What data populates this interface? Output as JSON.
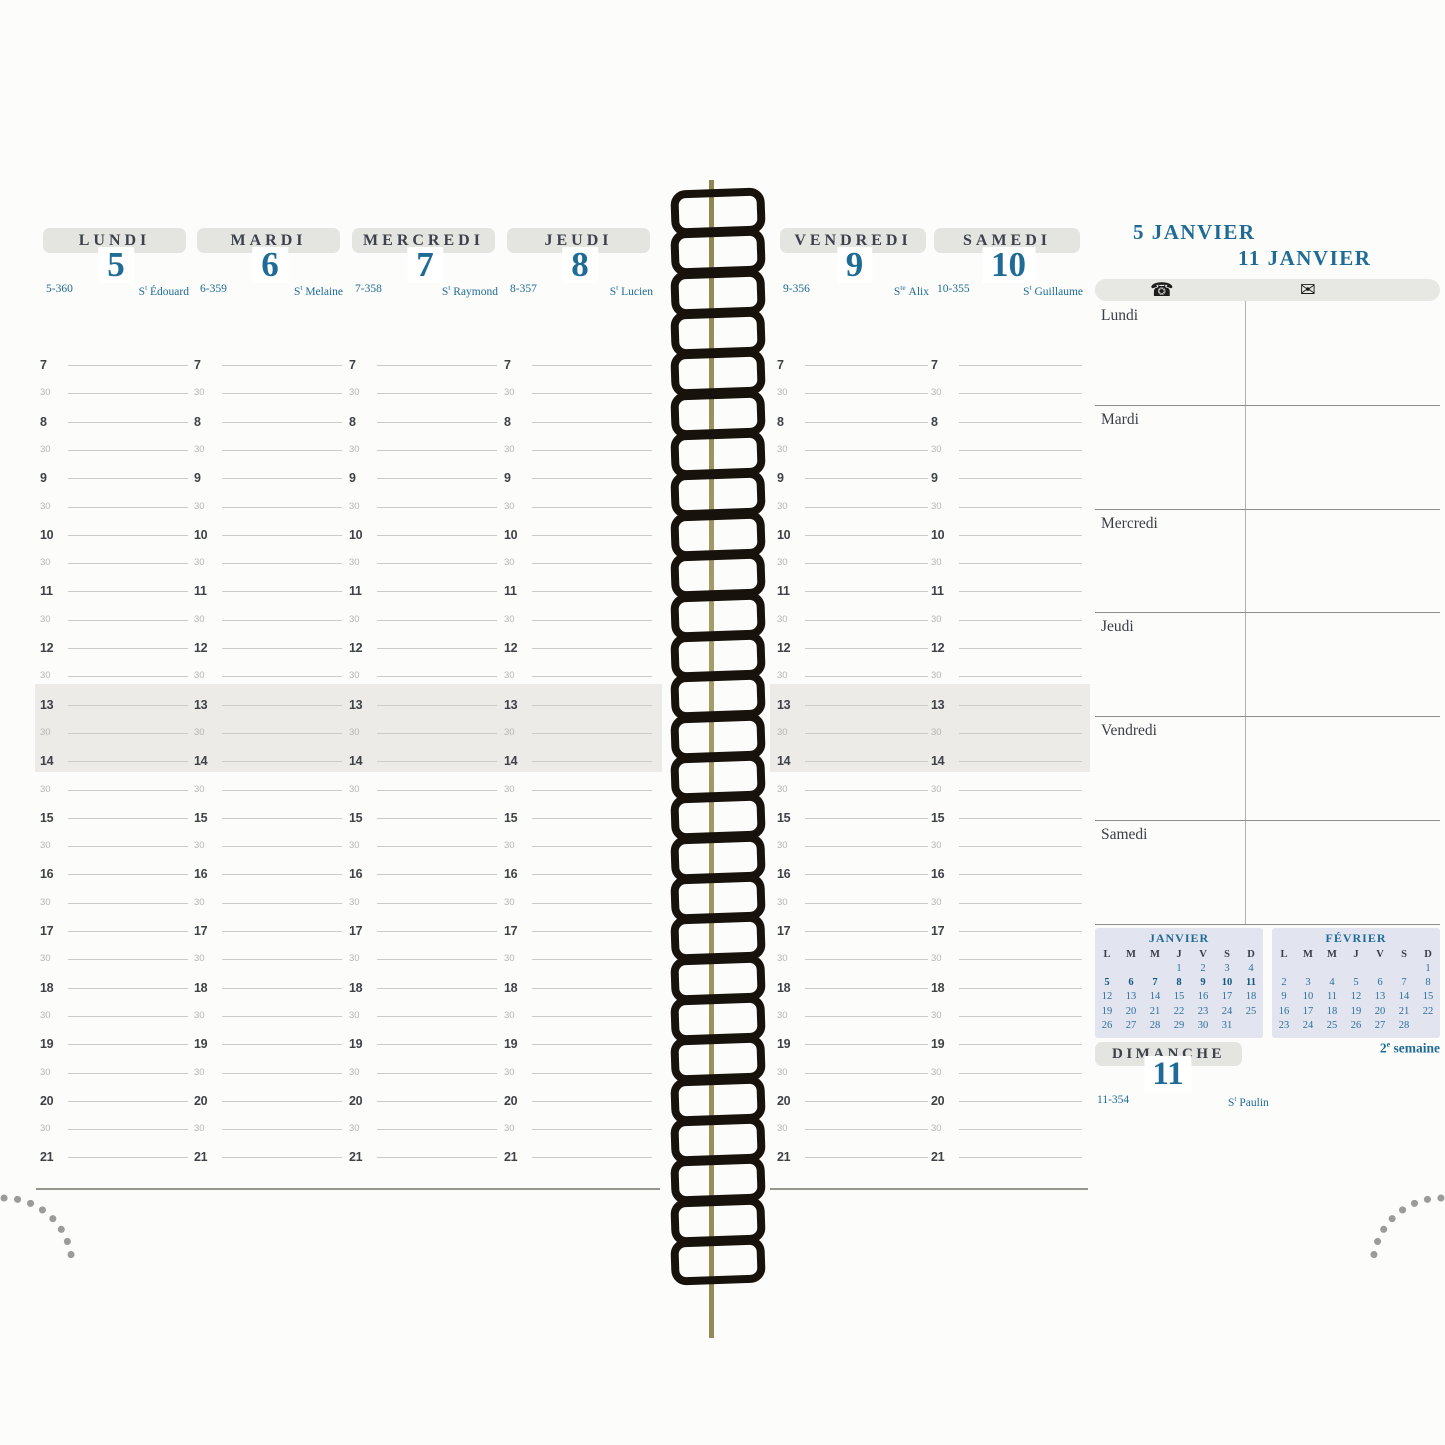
{
  "header": {
    "week_start": "5 JANVIER",
    "week_end": "11 JANVIER",
    "week_number": {
      "value": "2",
      "sup": "e",
      "word": "semaine"
    }
  },
  "icons": {
    "phone_glyph": "☎",
    "envelope_glyph": "✉"
  },
  "days": [
    {
      "name": "LUNDI",
      "number": "5",
      "ordinal": "5-360",
      "saint": {
        "prefix": "S",
        "sup": "t",
        "name": "Édouard"
      }
    },
    {
      "name": "MARDI",
      "number": "6",
      "ordinal": "6-359",
      "saint": {
        "prefix": "S",
        "sup": "t",
        "name": "Melaine"
      }
    },
    {
      "name": "MERCREDI",
      "number": "7",
      "ordinal": "7-358",
      "saint": {
        "prefix": "S",
        "sup": "t",
        "name": "Raymond"
      }
    },
    {
      "name": "JEUDI",
      "number": "8",
      "ordinal": "8-357",
      "saint": {
        "prefix": "S",
        "sup": "t",
        "name": "Lucien"
      }
    },
    {
      "name": "VENDREDI",
      "number": "9",
      "ordinal": "9-356",
      "saint": {
        "prefix": "S",
        "sup": "te",
        "name": "Alix"
      }
    },
    {
      "name": "SAMEDI",
      "number": "10",
      "ordinal": "10-355",
      "saint": {
        "prefix": "S",
        "sup": "t",
        "name": "Guillaume"
      }
    },
    {
      "name": "DIMANCHE",
      "number": "11",
      "ordinal": "11-354",
      "saint": {
        "prefix": "S",
        "sup": "t",
        "name": "Paulin"
      }
    }
  ],
  "time_slots": [
    "7",
    "30",
    "8",
    "30",
    "9",
    "30",
    "10",
    "30",
    "11",
    "30",
    "12",
    "30",
    "13",
    "30",
    "14",
    "30",
    "15",
    "30",
    "16",
    "30",
    "17",
    "30",
    "18",
    "30",
    "19",
    "30",
    "20",
    "30",
    "21"
  ],
  "notes_days": [
    "Lundi",
    "Mardi",
    "Mercredi",
    "Jeudi",
    "Vendredi",
    "Samedi"
  ],
  "mini_calendars": [
    {
      "title": "JANVIER",
      "day_headers": [
        "L",
        "M",
        "M",
        "J",
        "V",
        "S",
        "D"
      ],
      "weeks": [
        [
          "",
          "",
          "",
          "1",
          "2",
          "3",
          "4"
        ],
        [
          "5",
          "6",
          "7",
          "8",
          "9",
          "10",
          "11"
        ],
        [
          "12",
          "13",
          "14",
          "15",
          "16",
          "17",
          "18"
        ],
        [
          "19",
          "20",
          "21",
          "22",
          "23",
          "24",
          "25"
        ],
        [
          "26",
          "27",
          "28",
          "29",
          "30",
          "31",
          ""
        ]
      ],
      "bold_week_index": 1
    },
    {
      "title": "FÉVRIER",
      "day_headers": [
        "L",
        "M",
        "M",
        "J",
        "V",
        "S",
        "D"
      ],
      "weeks": [
        [
          "",
          "",
          "",
          "",
          "",
          "",
          "1"
        ],
        [
          "2",
          "3",
          "4",
          "5",
          "6",
          "7",
          "8"
        ],
        [
          "9",
          "10",
          "11",
          "12",
          "13",
          "14",
          "15"
        ],
        [
          "16",
          "17",
          "18",
          "19",
          "20",
          "21",
          "22"
        ],
        [
          "23",
          "24",
          "25",
          "26",
          "27",
          "28",
          ""
        ]
      ],
      "bold_week_index": -1
    }
  ],
  "colors": {
    "accent_blue": "#1f6b96",
    "header_dark": "#3c414b",
    "pill_gray": "#e4e4e1",
    "band_gray": "#ecebe8",
    "calendar_bg": "#e2e5ef",
    "line_gray": "#cbcbc7",
    "rule_gray": "#96968f",
    "halfhour_gray": "#b5b5b2",
    "spiral_black": "#17120b"
  }
}
